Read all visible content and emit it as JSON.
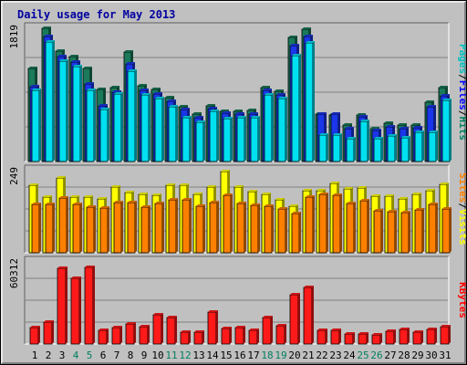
{
  "chart_data": {
    "type": "bar",
    "title": "Daily usage for May 2013",
    "categories": [
      "1",
      "2",
      "3",
      "4",
      "5",
      "6",
      "7",
      "8",
      "9",
      "10",
      "11",
      "12",
      "13",
      "14",
      "15",
      "16",
      "17",
      "18",
      "19",
      "20",
      "21",
      "22",
      "23",
      "24",
      "25",
      "26",
      "27",
      "28",
      "29",
      "30",
      "31"
    ],
    "weekend_days": [
      "4",
      "5",
      "11",
      "12",
      "18",
      "19",
      "25",
      "26"
    ],
    "panels": [
      {
        "id": "top",
        "max_label": "1819",
        "ymax": 1819,
        "side_label": [
          "Pages",
          "Files",
          "Hits"
        ],
        "side_label_colors": [
          "#00c0c0",
          "#0000ff",
          "#008060"
        ],
        "series": [
          {
            "name": "Hits",
            "color": "#1a7a5a",
            "values": [
              1270,
              1819,
              1509,
              1433,
              1272,
              981,
              1004,
              1491,
              1040,
              982,
              873,
              748,
              642,
              761,
              690,
              681,
              701,
              1007,
              962,
              1700,
              1804,
              643,
              640,
              502,
              640,
              453,
              523,
              497,
              493,
              814,
              1004
            ]
          },
          {
            "name": "Files",
            "color": "#1a36e8",
            "values": [
              1016,
              1708,
              1429,
              1359,
              1064,
              763,
              950,
              1338,
              970,
              922,
              823,
              713,
              595,
              725,
              662,
              651,
              650,
              975,
              910,
              1582,
              1709,
              645,
              645,
              446,
              614,
              421,
              479,
              453,
              456,
              747,
              899
            ]
          },
          {
            "name": "Pages",
            "color": "#00e0f0",
            "values": [
              978,
              1636,
              1370,
              1300,
              972,
              711,
              921,
              1238,
              915,
              855,
              744,
              598,
              535,
              680,
              581,
              596,
              602,
              904,
              855,
              1442,
              1615,
              358,
              367,
              307,
              543,
              308,
              349,
              327,
              401,
              402,
              831
            ]
          }
        ]
      },
      {
        "id": "middle",
        "max_label": "249",
        "ymax": 249,
        "side_label": [
          "Sites",
          "Visits"
        ],
        "side_label_colors": [
          "#ff8000",
          "#ffff00"
        ],
        "series": [
          {
            "name": "Visits",
            "color": "#ffff00",
            "values": [
              205,
              168,
              228,
              168,
              169,
              164,
              199,
              183,
              177,
              175,
              205,
              205,
              178,
              198,
              245,
              200,
              184,
              178,
              160,
              141,
              188,
              189,
              210,
              193,
              196,
              172,
              172,
              164,
              177,
              189,
              208
            ]
          },
          {
            "name": "Sites",
            "color": "#ff8000",
            "values": [
              148,
              148,
              166,
              148,
              138,
              136,
              153,
              153,
              139,
              150,
              161,
              161,
              140,
              151,
              173,
              149,
              143,
              142,
              134,
              119,
              168,
              177,
              173,
              149,
              157,
              127,
              124,
              121,
              131,
              147,
              134
            ]
          }
        ]
      },
      {
        "id": "bottom",
        "max_label": "60312",
        "ymax": 60312,
        "side_label": [
          "KBytes"
        ],
        "side_label_colors": [
          "#ff0000"
        ],
        "series": [
          {
            "name": "KBytes",
            "color": "#ff1a1a",
            "values": [
              11800,
              16000,
              55500,
              48000,
              56000,
              10000,
              12000,
              14800,
              13000,
              21200,
              19500,
              8500,
              9000,
              23300,
              11300,
              12100,
              9800,
              19300,
              13600,
              36500,
              41800,
              9800,
              10000,
              7200,
              7500,
              6800,
              9200,
              10500,
              9000,
              10800,
              13000
            ]
          }
        ]
      }
    ]
  }
}
